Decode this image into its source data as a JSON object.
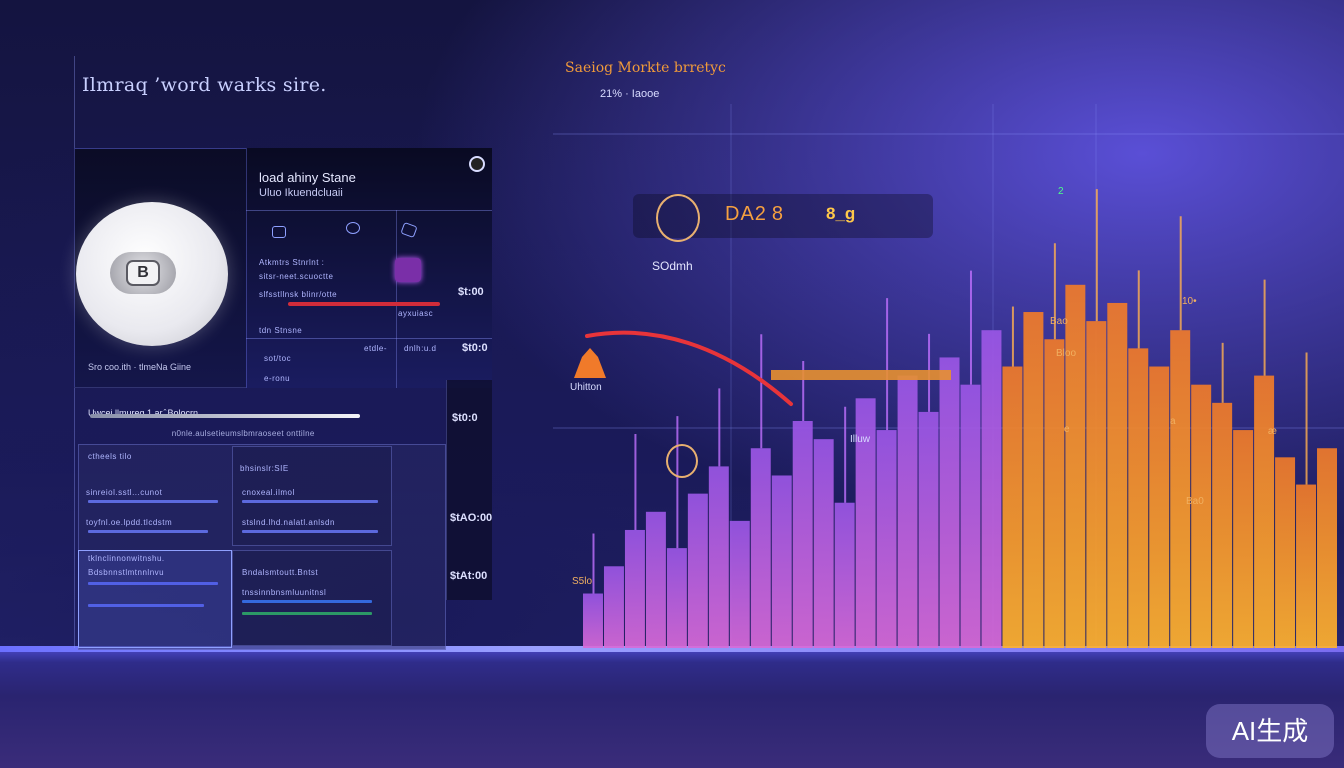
{
  "app": {
    "title": "Ilmraq ’word warks sire."
  },
  "profile": {
    "name": "load ahiny Stane",
    "subtitle": "Uluo Ikuendcluaii",
    "avatar_letter": "B",
    "caption": "Sro coo.ith · tlmeNa Giine"
  },
  "metrics_panel": {
    "row1_label": "Atkmtrs Stnrlnt :",
    "row2_label": "sitsr-neet.scuoctte",
    "row3_label": "slfsstllnsk blinr/otte",
    "row4_label": "tdn Stnsne",
    "right_values": [
      "$t:00",
      "$t0:0",
      "$tAO:00",
      "$tAt:00"
    ],
    "sub_values": [
      "etdle-",
      "dnlh:u.d",
      "ayxuiasc",
      "sot/toc",
      "e-ronu"
    ]
  },
  "slider": {
    "label": "Uwcei  llmureg  1 ar ̂ Bolocrn",
    "sub": "n0nle.aulsetieumslbmraoseet onttilne"
  },
  "table": {
    "cells": [
      {
        "title": "ctheels tilo",
        "lines": [
          "sinreiol.sstl...cunot",
          "toyfnl.oe.lpdd.tlcdstm"
        ]
      },
      {
        "title": "bhsinslr:SIE",
        "lines": [
          "cnoxeal.ilmol",
          "stslnd.lhd.nalatl.anlsdn"
        ]
      },
      {
        "title": "tklnclinnonwitnshu.",
        "lines": [
          "Bdsbnnstlmtnnlnvu"
        ]
      },
      {
        "title": "Bndalsmtoutt.Bntst",
        "lines": [
          "tnssinnbnsmluunitnsl"
        ]
      }
    ]
  },
  "chart_data": {
    "type": "bar",
    "title": "Saeiog  Morkte brretyc",
    "subtitle": "21% · Iaooe",
    "kpi_label": "DA2 8",
    "kpi_value": "8_g",
    "kpi_sub": "SOdmh",
    "annotations": [
      "e",
      "10•",
      "Bao",
      "Bloo",
      "a",
      "Illuw",
      "S5lo",
      "2",
      "Ba0",
      "Uhitton",
      "æ"
    ],
    "series": [
      {
        "values": [
          12,
          18,
          26,
          30,
          22,
          34,
          40,
          28,
          44,
          38,
          50,
          46,
          32,
          55,
          48,
          60,
          52,
          64,
          58,
          70,
          62,
          74,
          68,
          80,
          72,
          76,
          66,
          62,
          70,
          58,
          54,
          48,
          60,
          42,
          36,
          44
        ]
      }
    ],
    "ylim": [
      0,
      100
    ],
    "grid": true,
    "colors": {
      "high": "#ffb22e",
      "mid": "#f07a2a",
      "low": "#9a56e6"
    }
  },
  "watermark": "AI生成"
}
